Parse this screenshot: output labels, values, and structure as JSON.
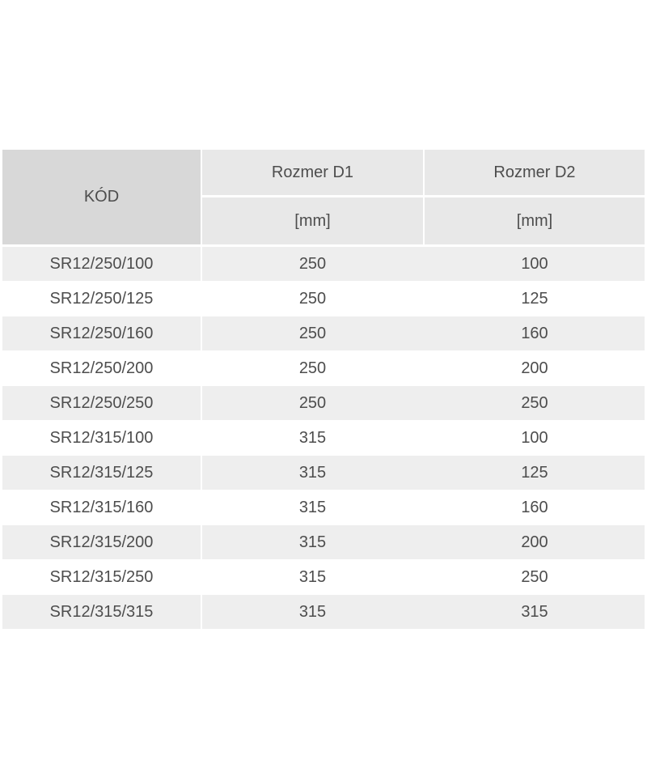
{
  "header": {
    "code": "KÓD",
    "d1": "Rozmer D1",
    "d2": "Rozmer D2",
    "unit1": "[mm]",
    "unit2": "[mm]"
  },
  "rows": [
    {
      "code": "SR12/250/100",
      "d1": "250",
      "d2": "100"
    },
    {
      "code": "SR12/250/125",
      "d1": "250",
      "d2": "125"
    },
    {
      "code": "SR12/250/160",
      "d1": "250",
      "d2": "160"
    },
    {
      "code": "SR12/250/200",
      "d1": "250",
      "d2": "200"
    },
    {
      "code": "SR12/250/250",
      "d1": "250",
      "d2": "250"
    },
    {
      "code": "SR12/315/100",
      "d1": "315",
      "d2": "100"
    },
    {
      "code": "SR12/315/125",
      "d1": "315",
      "d2": "125"
    },
    {
      "code": "SR12/315/160",
      "d1": "315",
      "d2": "160"
    },
    {
      "code": "SR12/315/200",
      "d1": "315",
      "d2": "200"
    },
    {
      "code": "SR12/315/250",
      "d1": "315",
      "d2": "250"
    },
    {
      "code": "SR12/315/315",
      "d1": "315",
      "d2": "315"
    }
  ]
}
